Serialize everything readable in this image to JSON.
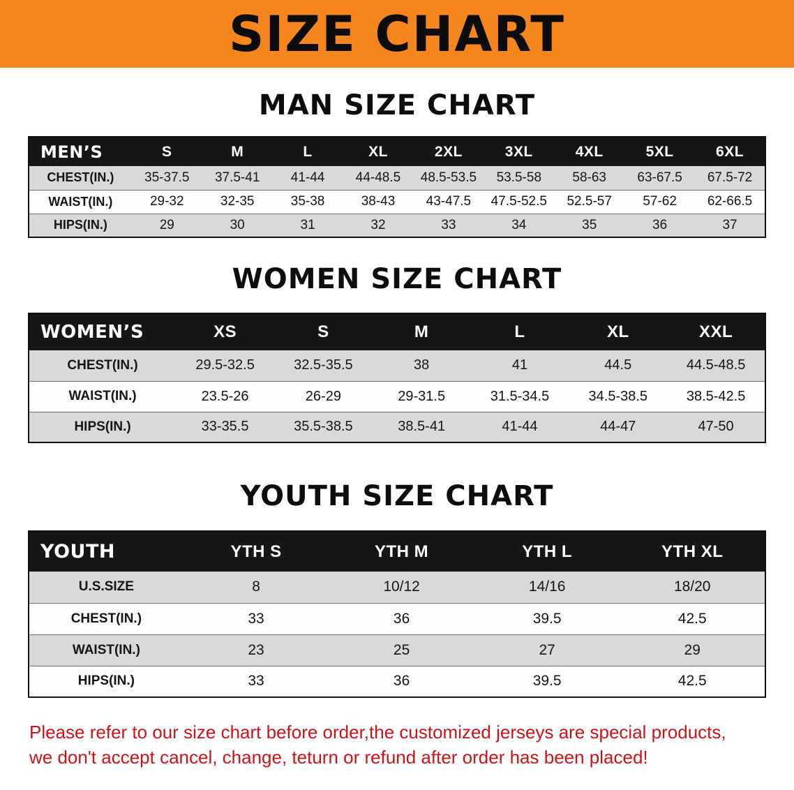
{
  "theme": {
    "banner-bg": "#f5861d",
    "table-header-bg": "#161616",
    "row-alt-bg": "#d9d9d9",
    "footer-red": "#d01216"
  },
  "banner": {
    "title": "SIZE CHART"
  },
  "sections": [
    {
      "id": "men",
      "heading": "MAN SIZE CHART",
      "table": {
        "header": [
          "MEN’S",
          "S",
          "M",
          "L",
          "XL",
          "2XL",
          "3XL",
          "4XL",
          "5XL",
          "6XL"
        ],
        "rows": [
          [
            "CHEST(IN.)",
            "35-37.5",
            "37.5-41",
            "41-44",
            "44-48.5",
            "48.5-53.5",
            "53.5-58",
            "58-63",
            "63-67.5",
            "67.5-72"
          ],
          [
            "WAIST(IN.)",
            "29-32",
            "32-35",
            "35-38",
            "38-43",
            "43-47.5",
            "47.5-52.5",
            "52.5-57",
            "57-62",
            "62-66.5"
          ],
          [
            "HIPS(IN.)",
            "29",
            "30",
            "31",
            "32",
            "33",
            "34",
            "35",
            "36",
            "37"
          ]
        ]
      }
    },
    {
      "id": "women",
      "heading": "WOMEN SIZE CHART",
      "table": {
        "header": [
          "WOMEN’S",
          "XS",
          "S",
          "M",
          "L",
          "XL",
          "XXL"
        ],
        "rows": [
          [
            "CHEST(IN.)",
            "29.5-32.5",
            "32.5-35.5",
            "38",
            "41",
            "44.5",
            "44.5-48.5"
          ],
          [
            "WAIST(IN.)",
            "23.5-26",
            "26-29",
            "29-31.5",
            "31.5-34.5",
            "34.5-38.5",
            "38.5-42.5"
          ],
          [
            "HIPS(IN.)",
            "33-35.5",
            "35.5-38.5",
            "38.5-41",
            "41-44",
            "44-47",
            "47-50"
          ]
        ]
      }
    },
    {
      "id": "youth",
      "heading": "YOUTH SIZE CHART",
      "table": {
        "header": [
          "YOUTH",
          "YTH S",
          "YTH M",
          "YTH L",
          "YTH XL"
        ],
        "rows": [
          [
            "U.S.SIZE",
            "8",
            "10/12",
            "14/16",
            "18/20"
          ],
          [
            "CHEST(IN.)",
            "33",
            "36",
            "39.5",
            "42.5"
          ],
          [
            "WAIST(IN.)",
            "23",
            "25",
            "27",
            "29"
          ],
          [
            "HIPS(IN.)",
            "33",
            "36",
            "39.5",
            "42.5"
          ]
        ]
      }
    }
  ],
  "footer": {
    "line1": "Please refer to our size chart before order,the customized jerseys are special products,",
    "line2": "we don't accept cancel, change, teturn or refund after order has been placed!"
  }
}
